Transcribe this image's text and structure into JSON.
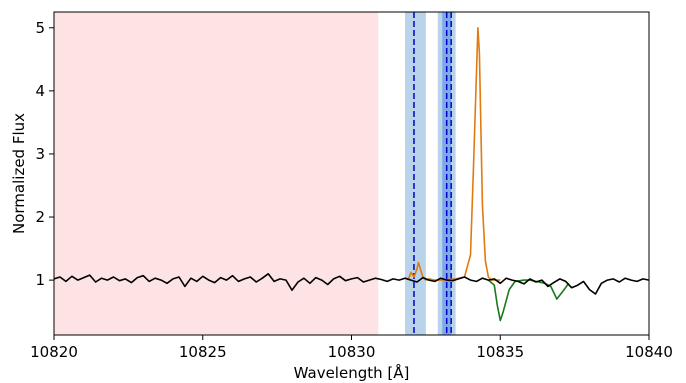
{
  "chart_data": {
    "type": "line",
    "xlabel": "Wavelength [Å]",
    "ylabel": "Normalized Flux",
    "xlim": [
      10820,
      10840
    ],
    "ylim": [
      0.13,
      5.25
    ],
    "xticks": [
      10820,
      10825,
      10830,
      10835,
      10840
    ],
    "yticks": [
      1,
      2,
      3,
      4,
      5
    ],
    "grid": false,
    "shaded_regions": [
      {
        "x0": 10820,
        "x1": 10830.9,
        "color": "#fde3e3"
      },
      {
        "x0": 10831.8,
        "x1": 10832.5,
        "color": "#b9d3ea"
      },
      {
        "x0": 10832.9,
        "x1": 10833.5,
        "color": "#b9d3ea"
      },
      {
        "x0": 10833.05,
        "x1": 10833.35,
        "color": "#7fa8e8"
      }
    ],
    "vlines": [
      10832.1,
      10833.2,
      10833.35
    ],
    "vline_color": "#0000cc",
    "series": [
      {
        "color": "#e07b10",
        "x": [
          10831.9,
          10832.0,
          10832.1,
          10832.2,
          10832.25,
          10832.3,
          10832.4,
          10832.5,
          10832.6,
          10832.8,
          10833.0,
          10833.5,
          10833.8,
          10834.0,
          10834.1,
          10834.2,
          10834.25,
          10834.3,
          10834.35,
          10834.4,
          10834.5,
          10834.6,
          10834.7,
          10835.0
        ],
        "y": [
          1.0,
          1.12,
          1.05,
          1.18,
          1.28,
          1.2,
          1.05,
          1.0,
          1.02,
          1.0,
          1.0,
          1.02,
          1.05,
          1.4,
          2.8,
          4.3,
          5.0,
          4.6,
          3.4,
          2.2,
          1.3,
          1.05,
          1.0,
          1.0
        ]
      },
      {
        "color": "#1a7a1a",
        "x": [
          10834.6,
          10834.8,
          10834.9,
          10835.0,
          10835.1,
          10835.3,
          10835.5,
          10835.8,
          10836.0,
          10836.2,
          10836.5,
          10836.7,
          10836.9,
          10837.1,
          10837.3
        ],
        "y": [
          1.0,
          0.92,
          0.6,
          0.36,
          0.5,
          0.85,
          0.98,
          1.0,
          1.0,
          0.98,
          0.95,
          0.9,
          0.7,
          0.82,
          0.95
        ]
      },
      {
        "color": "#000000",
        "x": [
          10820.0,
          10820.2,
          10820.4,
          10820.6,
          10820.8,
          10821.0,
          10821.2,
          10821.4,
          10821.6,
          10821.8,
          10822.0,
          10822.2,
          10822.4,
          10822.6,
          10822.8,
          10823.0,
          10823.2,
          10823.4,
          10823.6,
          10823.8,
          10824.0,
          10824.2,
          10824.4,
          10824.6,
          10824.8,
          10825.0,
          10825.2,
          10825.4,
          10825.6,
          10825.8,
          10826.0,
          10826.2,
          10826.4,
          10826.6,
          10826.8,
          10827.0,
          10827.2,
          10827.4,
          10827.6,
          10827.8,
          10828.0,
          10828.2,
          10828.4,
          10828.6,
          10828.8,
          10829.0,
          10829.2,
          10829.4,
          10829.6,
          10829.8,
          10830.0,
          10830.2,
          10830.4,
          10830.6,
          10830.8,
          10831.0,
          10831.2,
          10831.4,
          10831.6,
          10831.8,
          10832.0,
          10832.2,
          10832.4,
          10832.6,
          10832.8,
          10833.0,
          10833.2,
          10833.4,
          10833.6,
          10833.8,
          10834.0,
          10834.2,
          10834.4,
          10834.6,
          10834.8,
          10835.0,
          10835.2,
          10835.4,
          10835.6,
          10835.8,
          10836.0,
          10836.2,
          10836.4,
          10836.6,
          10836.8,
          10837.0,
          10837.2,
          10837.4,
          10837.6,
          10837.8,
          10838.0,
          10838.2,
          10838.4,
          10838.6,
          10838.8,
          10839.0,
          10839.2,
          10839.4,
          10839.6,
          10839.8,
          10840.0
        ],
        "y": [
          1.02,
          1.05,
          0.98,
          1.06,
          1.0,
          1.04,
          1.08,
          0.97,
          1.03,
          1.0,
          1.05,
          0.99,
          1.02,
          0.96,
          1.04,
          1.07,
          0.98,
          1.03,
          1.0,
          0.95,
          1.02,
          1.05,
          0.9,
          1.03,
          0.98,
          1.06,
          1.0,
          0.96,
          1.04,
          1.0,
          1.07,
          0.98,
          1.02,
          1.05,
          0.97,
          1.03,
          1.1,
          0.98,
          1.02,
          1.0,
          0.84,
          0.97,
          1.03,
          0.95,
          1.04,
          1.0,
          0.93,
          1.02,
          1.06,
          0.99,
          1.02,
          1.04,
          0.97,
          1.0,
          1.03,
          1.01,
          0.98,
          1.02,
          1.0,
          1.03,
          1.0,
          0.97,
          1.04,
          1.0,
          0.98,
          1.03,
          1.0,
          0.99,
          1.02,
          1.05,
          1.0,
          0.98,
          1.03,
          1.0,
          1.02,
          0.95,
          1.03,
          1.0,
          0.98,
          0.94,
          1.02,
          0.97,
          1.0,
          0.9,
          0.96,
          1.02,
          0.98,
          0.88,
          0.92,
          0.98,
          0.85,
          0.78,
          0.95,
          1.0,
          1.02,
          0.97,
          1.03,
          1.0,
          0.98,
          1.02,
          1.0
        ]
      }
    ]
  }
}
